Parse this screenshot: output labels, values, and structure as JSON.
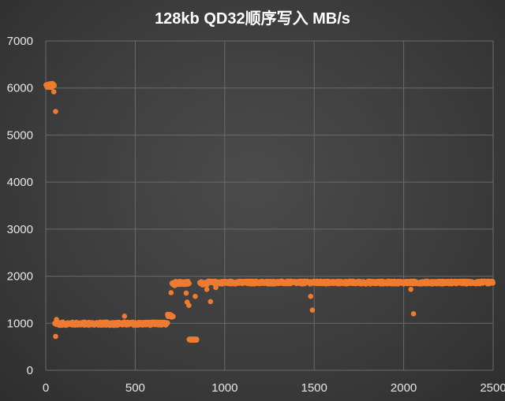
{
  "chart_data": {
    "type": "scatter",
    "title": "128kb QD32顺序写入 MB/s",
    "xlabel": "",
    "ylabel": "",
    "xlim": [
      0,
      2500
    ],
    "ylim": [
      0,
      7000
    ],
    "x_ticks": [
      "0",
      "500",
      "1000",
      "1500",
      "2000",
      "2500"
    ],
    "y_ticks": [
      "0",
      "1000",
      "2000",
      "3000",
      "4000",
      "5000",
      "6000",
      "7000"
    ],
    "grid": true,
    "legend": "none",
    "marker_color": "#ee7b30",
    "segments": [
      {
        "x_start": 0,
        "x_end": 45,
        "value": 6050,
        "jitter": 50
      },
      {
        "x_start": 50,
        "x_end": 680,
        "value": 990,
        "jitter": 35
      },
      {
        "x_start": 680,
        "x_end": 710,
        "value": 1160,
        "jitter": 30
      },
      {
        "x_start": 705,
        "x_end": 800,
        "value": 1860,
        "jitter": 35
      },
      {
        "x_start": 800,
        "x_end": 840,
        "value": 650,
        "jitter": 15
      },
      {
        "x_start": 860,
        "x_end": 900,
        "value": 1850,
        "jitter": 35
      },
      {
        "x_start": 905,
        "x_end": 2500,
        "value": 1865,
        "jitter": 30
      }
    ],
    "outliers": [
      {
        "x": 45,
        "y": 5920
      },
      {
        "x": 55,
        "y": 5500
      },
      {
        "x": 55,
        "y": 720
      },
      {
        "x": 60,
        "y": 1080
      },
      {
        "x": 440,
        "y": 1150
      },
      {
        "x": 700,
        "y": 1650
      },
      {
        "x": 720,
        "y": 1800
      },
      {
        "x": 790,
        "y": 1450
      },
      {
        "x": 800,
        "y": 1380
      },
      {
        "x": 785,
        "y": 1640
      },
      {
        "x": 835,
        "y": 1570
      },
      {
        "x": 900,
        "y": 1720
      },
      {
        "x": 920,
        "y": 1460
      },
      {
        "x": 950,
        "y": 1760
      },
      {
        "x": 1480,
        "y": 1570
      },
      {
        "x": 1490,
        "y": 1280
      },
      {
        "x": 2040,
        "y": 1720
      },
      {
        "x": 2055,
        "y": 1200
      }
    ]
  }
}
